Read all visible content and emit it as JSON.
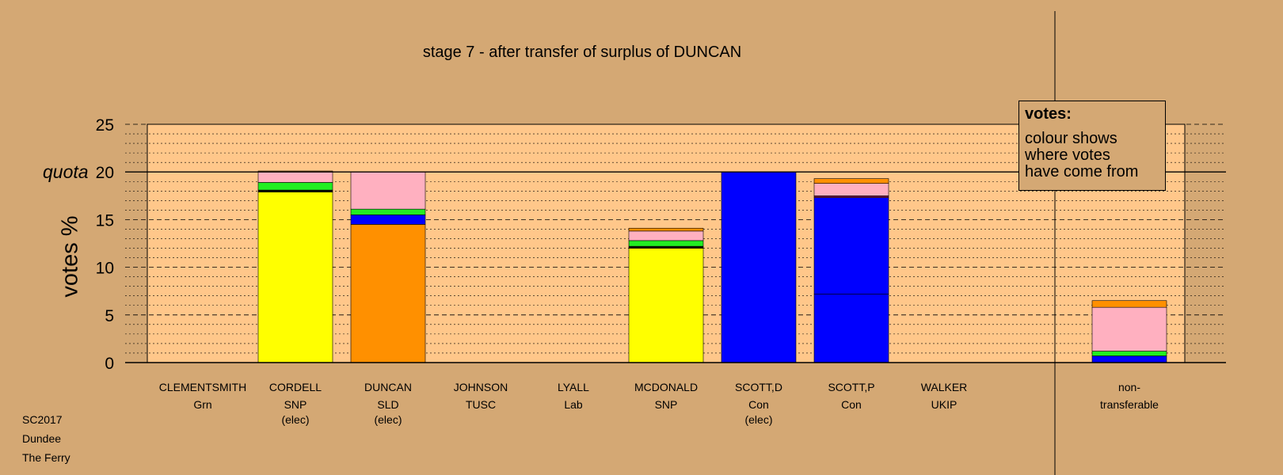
{
  "chart_data": {
    "type": "bar",
    "stacked": true,
    "title": "stage 7 - after transfer of surplus of DUNCAN",
    "ylabel": "votes %",
    "ylim": [
      0,
      25
    ],
    "yticks": [
      0,
      5,
      10,
      15,
      20,
      25
    ],
    "quota": {
      "label": "quota",
      "value": 20
    },
    "grid": true,
    "categories": [
      {
        "name": "CLEMENTSMITH",
        "party": "Grn",
        "note": ""
      },
      {
        "name": "CORDELL",
        "party": "SNP",
        "note": "(elec)"
      },
      {
        "name": "DUNCAN",
        "party": "SLD",
        "note": "(elec)"
      },
      {
        "name": "JOHNSON",
        "party": "TUSC",
        "note": ""
      },
      {
        "name": "LYALL",
        "party": "Lab",
        "note": ""
      },
      {
        "name": "MCDONALD",
        "party": "SNP",
        "note": ""
      },
      {
        "name": "SCOTT,D",
        "party": "Con",
        "note": "(elec)"
      },
      {
        "name": "SCOTT,P",
        "party": "Con",
        "note": ""
      },
      {
        "name": "WALKER",
        "party": "UKIP",
        "note": ""
      }
    ],
    "extra_category": {
      "name": "non-",
      "name2": "transferable"
    },
    "bars": [
      [],
      [
        {
          "color": "#ffff00",
          "value": 17.9
        },
        {
          "color": "#000000",
          "value": 0.2
        },
        {
          "color": "#22ee22",
          "value": 0.8
        },
        {
          "color": "#ffb0c0",
          "value": 1.1
        },
        {
          "color": "#ff9000",
          "value": 0.1
        }
      ],
      [
        {
          "color": "#ff9000",
          "value": 14.5
        },
        {
          "color": "#0000ff",
          "value": 1.0
        },
        {
          "color": "#22ee22",
          "value": 0.6
        },
        {
          "color": "#ffb0c0",
          "value": 3.9
        }
      ],
      [],
      [],
      [
        {
          "color": "#ffff00",
          "value": 12.0
        },
        {
          "color": "#000000",
          "value": 0.2
        },
        {
          "color": "#22ee22",
          "value": 0.6
        },
        {
          "color": "#ffb0c0",
          "value": 1.0
        },
        {
          "color": "#ff9000",
          "value": 0.3
        }
      ],
      [
        {
          "color": "#0000ff",
          "value": 20.0
        }
      ],
      [
        {
          "color": "#0000ff",
          "value": 7.2
        },
        {
          "color": "#0000ff",
          "value": 10.1
        },
        {
          "color": "#7a1e4e",
          "value": 0.2
        },
        {
          "color": "#ffb0c0",
          "value": 1.3
        },
        {
          "color": "#ff9000",
          "value": 0.5
        }
      ],
      []
    ],
    "extra_bar": [
      {
        "color": "#0000ff",
        "value": 0.7
      },
      {
        "color": "#22ee22",
        "value": 0.5
      },
      {
        "color": "#ffb0c0",
        "value": 4.6
      },
      {
        "color": "#ff9000",
        "value": 0.7
      }
    ],
    "colors": {
      "background": "#d4a874",
      "plot_area": "#ffc78a"
    }
  },
  "legend": {
    "heading": "votes:",
    "lines": [
      "colour shows",
      "where votes",
      "have come from"
    ]
  },
  "footer": {
    "line1": "SC2017",
    "line2": "Dundee",
    "line3": "The Ferry"
  }
}
